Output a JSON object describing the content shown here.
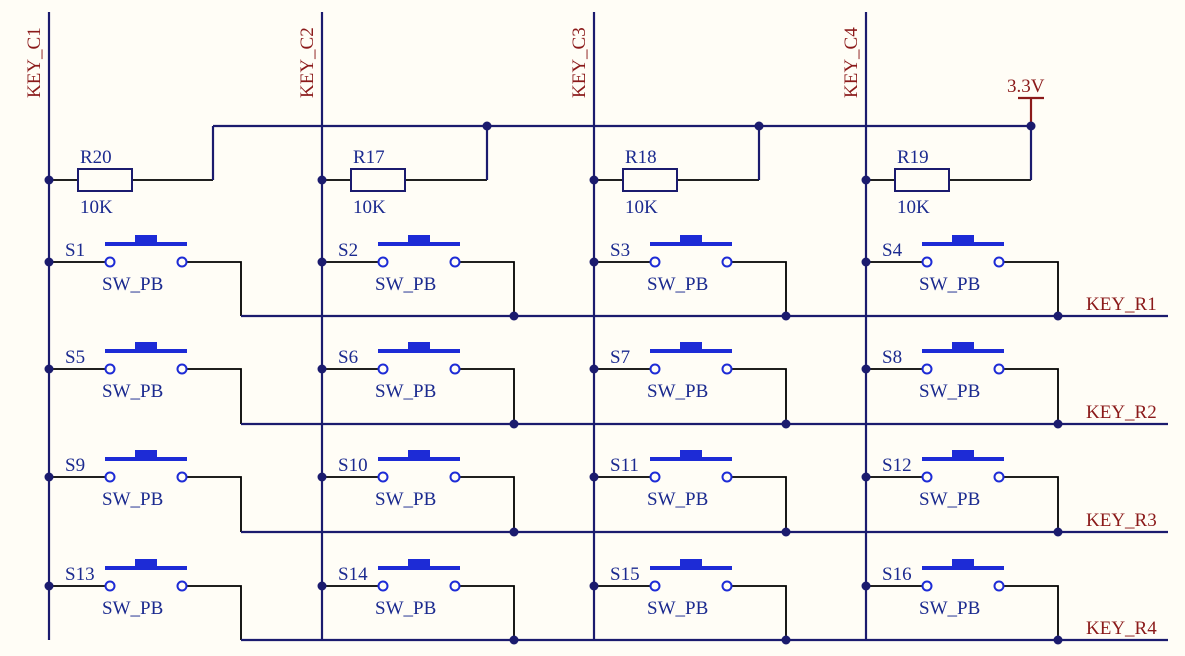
{
  "columns": [
    {
      "net": "KEY_C1",
      "resistor": {
        "ref": "R20",
        "value": "10K"
      }
    },
    {
      "net": "KEY_C2",
      "resistor": {
        "ref": "R17",
        "value": "10K"
      }
    },
    {
      "net": "KEY_C3",
      "resistor": {
        "ref": "R18",
        "value": "10K"
      }
    },
    {
      "net": "KEY_C4",
      "resistor": {
        "ref": "R19",
        "value": "10K"
      }
    }
  ],
  "rows": [
    {
      "net": "KEY_R1",
      "switches": [
        "S1",
        "S2",
        "S3",
        "S4"
      ]
    },
    {
      "net": "KEY_R2",
      "switches": [
        "S5",
        "S6",
        "S7",
        "S8"
      ]
    },
    {
      "net": "KEY_R3",
      "switches": [
        "S9",
        "S10",
        "S11",
        "S12"
      ]
    },
    {
      "net": "KEY_R4",
      "switches": [
        "S13",
        "S14",
        "S15",
        "S16"
      ]
    }
  ],
  "switch_type": "SW_PB",
  "power": "3.3V"
}
